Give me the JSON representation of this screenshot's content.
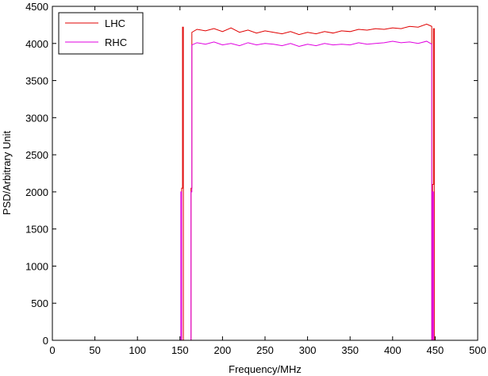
{
  "chart_data": {
    "type": "line",
    "title": "",
    "xlabel": "Frequency/MHz",
    "ylabel": "PSD/Arbitrary Unit",
    "xlim": [
      0,
      500
    ],
    "ylim": [
      0,
      4500
    ],
    "xticks": [
      0,
      50,
      100,
      150,
      200,
      250,
      300,
      350,
      400,
      450,
      500
    ],
    "yticks": [
      0,
      500,
      1000,
      1500,
      2000,
      2500,
      3000,
      3500,
      4000,
      4500
    ],
    "grid": false,
    "legend_position": "top-left",
    "series": [
      {
        "name": "LHC",
        "color": "#e00000",
        "points": [
          [
            0,
            0
          ],
          [
            152,
            0
          ],
          [
            152,
            2050
          ],
          [
            153,
            2050
          ],
          [
            153,
            4220
          ],
          [
            154,
            4220
          ],
          [
            154,
            0
          ],
          [
            163,
            0
          ],
          [
            163,
            2050
          ],
          [
            164,
            2050
          ],
          [
            164,
            4150
          ],
          [
            170,
            4190
          ],
          [
            180,
            4170
          ],
          [
            190,
            4200
          ],
          [
            200,
            4160
          ],
          [
            210,
            4210
          ],
          [
            220,
            4150
          ],
          [
            230,
            4180
          ],
          [
            240,
            4140
          ],
          [
            250,
            4170
          ],
          [
            260,
            4150
          ],
          [
            270,
            4130
          ],
          [
            280,
            4160
          ],
          [
            290,
            4120
          ],
          [
            300,
            4150
          ],
          [
            310,
            4130
          ],
          [
            320,
            4160
          ],
          [
            330,
            4140
          ],
          [
            340,
            4170
          ],
          [
            350,
            4160
          ],
          [
            360,
            4190
          ],
          [
            370,
            4180
          ],
          [
            380,
            4200
          ],
          [
            390,
            4190
          ],
          [
            400,
            4210
          ],
          [
            410,
            4200
          ],
          [
            420,
            4230
          ],
          [
            430,
            4220
          ],
          [
            440,
            4260
          ],
          [
            446,
            4230
          ],
          [
            446,
            0
          ],
          [
            447,
            0
          ],
          [
            447,
            2100
          ],
          [
            448,
            2100
          ],
          [
            448,
            4200
          ],
          [
            449,
            4200
          ],
          [
            449,
            0
          ],
          [
            500,
            0
          ]
        ]
      },
      {
        "name": "RHC",
        "color": "#e000e0",
        "points": [
          [
            0,
            0
          ],
          [
            151,
            0
          ],
          [
            151,
            2000
          ],
          [
            152,
            2000
          ],
          [
            152,
            0
          ],
          [
            163,
            0
          ],
          [
            163,
            2000
          ],
          [
            164,
            2000
          ],
          [
            164,
            3980
          ],
          [
            170,
            4010
          ],
          [
            180,
            3990
          ],
          [
            190,
            4020
          ],
          [
            200,
            3980
          ],
          [
            210,
            4000
          ],
          [
            220,
            3970
          ],
          [
            230,
            4010
          ],
          [
            240,
            3980
          ],
          [
            250,
            4000
          ],
          [
            260,
            3990
          ],
          [
            270,
            3970
          ],
          [
            280,
            4000
          ],
          [
            290,
            3960
          ],
          [
            300,
            3990
          ],
          [
            310,
            3970
          ],
          [
            320,
            4000
          ],
          [
            330,
            3980
          ],
          [
            340,
            3990
          ],
          [
            350,
            3980
          ],
          [
            360,
            4010
          ],
          [
            370,
            3990
          ],
          [
            380,
            4000
          ],
          [
            390,
            4010
          ],
          [
            400,
            4030
          ],
          [
            410,
            4010
          ],
          [
            420,
            4020
          ],
          [
            430,
            4000
          ],
          [
            440,
            4030
          ],
          [
            446,
            3990
          ],
          [
            446,
            0
          ],
          [
            447,
            0
          ],
          [
            447,
            2000
          ],
          [
            448,
            2000
          ],
          [
            448,
            0
          ],
          [
            500,
            0
          ]
        ]
      }
    ]
  }
}
